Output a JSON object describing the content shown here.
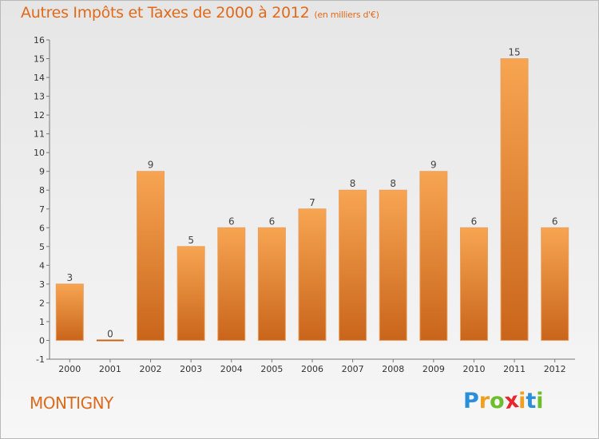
{
  "title": "Autres Impôts et Taxes de 2000 à 2012",
  "subtitle": "(en milliers d'€)",
  "town": "MONTIGNY",
  "logo": {
    "letters": [
      "P",
      "r",
      "o",
      "x",
      "i",
      "t",
      "i"
    ],
    "colors": [
      "#2a8fd8",
      "#f0a020",
      "#6cbf2a",
      "#e8262e",
      "#f0a020",
      "#2a8fd8",
      "#6cbf2a"
    ]
  },
  "colors": {
    "accent": "#e06a1b",
    "bar_top": "#f7a552",
    "bar_bottom": "#c9651b"
  },
  "chart_data": {
    "type": "bar",
    "categories": [
      "2000",
      "2001",
      "2002",
      "2003",
      "2004",
      "2005",
      "2006",
      "2007",
      "2008",
      "2009",
      "2010",
      "2011",
      "2012"
    ],
    "values": [
      3,
      0,
      9,
      5,
      6,
      6,
      7,
      8,
      8,
      9,
      6,
      15,
      6
    ],
    "value_labels": [
      "3",
      "0",
      "9",
      "5",
      "6",
      "6",
      "7",
      "8",
      "8",
      "9",
      "6",
      "15",
      "6"
    ],
    "y_ticks": [
      "-1",
      "0",
      "1",
      "2",
      "3",
      "4",
      "5",
      "6",
      "7",
      "8",
      "9",
      "10",
      "11",
      "12",
      "13",
      "14",
      "15",
      "16"
    ],
    "ylim": [
      -1,
      16
    ],
    "grid": false
  }
}
